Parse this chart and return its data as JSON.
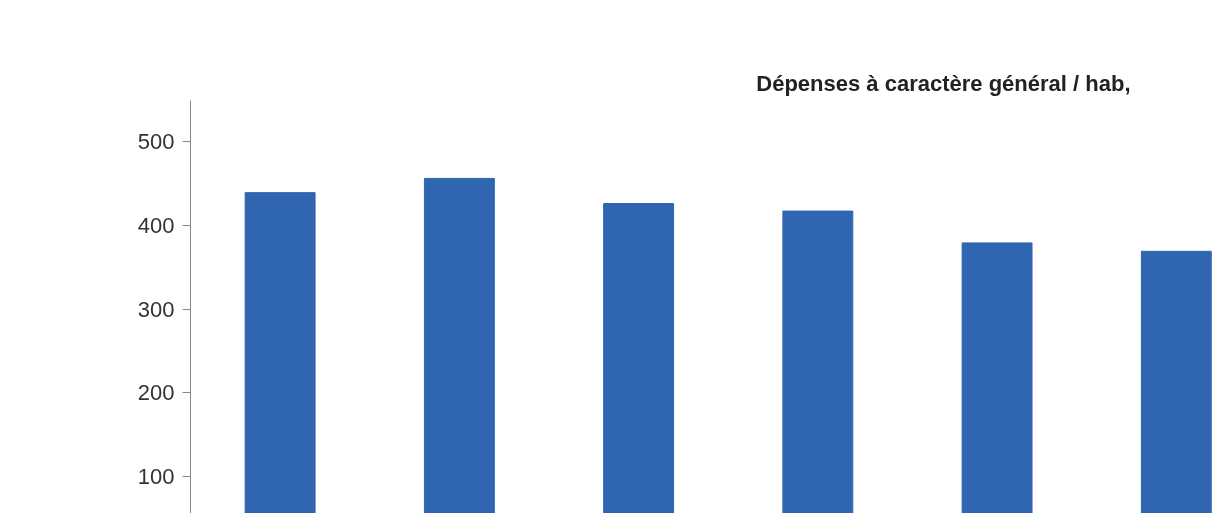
{
  "chart_data": {
    "type": "bar",
    "title": "Dépenses à caractère général / hab,",
    "categories": [
      null,
      null,
      null,
      null,
      null,
      null
    ],
    "values": [
      439,
      456,
      426,
      417,
      379,
      369
    ],
    "color": "#2f65b1",
    "ylim": [
      56,
      549
    ],
    "yticks": [
      100,
      200,
      300,
      400,
      500
    ],
    "tick_labels": "y",
    "grid": false
  }
}
